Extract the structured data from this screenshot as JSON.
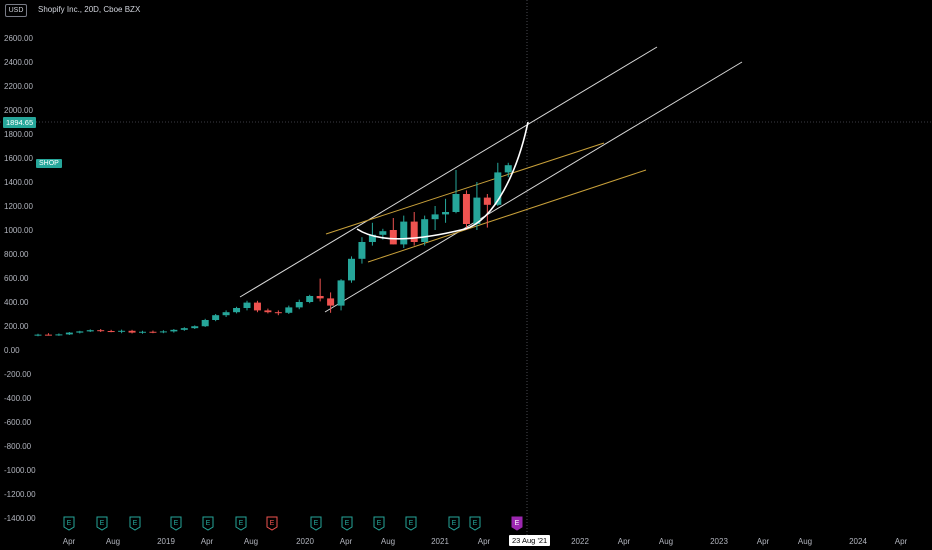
{
  "header": {
    "currency": "USD",
    "title": "Shopify Inc., 20D, Cboe BZX",
    "ticker": "SHOP",
    "crosshair_price": "1894.65",
    "crosshair_date": "23 Aug '21"
  },
  "colors": {
    "background": "#000000",
    "up": "#26a69a",
    "down": "#ef5350",
    "channel_line": "#d9d9d9",
    "wedge_line": "#c8a03a",
    "curve": "#ffffff",
    "earnings_badge_up": "#26a69a",
    "earnings_badge_down": "#ef5350",
    "earnings_badge_next": "#9c27b0"
  },
  "chart_data": {
    "type": "candlestick",
    "ylim": [
      -1450,
      2700
    ],
    "y_ticks": [
      "2600.00",
      "2400.00",
      "2200.00",
      "2000.00",
      "1800.00",
      "1600.00",
      "1400.00",
      "1200.00",
      "1000.00",
      "800.00",
      "600.00",
      "400.00",
      "200.00",
      "0.00",
      "-200.00",
      "-400.00",
      "-600.00",
      "-800.00",
      "-1000.00",
      "-1200.00",
      "-1400.00"
    ],
    "x_ticks": [
      "Apr",
      "Aug",
      "2019",
      "Apr",
      "Aug",
      "2020",
      "Apr",
      "Aug",
      "2021",
      "Apr",
      "23 Aug '21",
      "2022",
      "Apr",
      "Aug",
      "2023",
      "Apr",
      "Aug",
      "2024",
      "Apr"
    ],
    "candles": [
      {
        "o": 125,
        "h": 135,
        "l": 115,
        "c": 128
      },
      {
        "o": 128,
        "h": 140,
        "l": 120,
        "c": 126
      },
      {
        "o": 126,
        "h": 138,
        "l": 118,
        "c": 130
      },
      {
        "o": 130,
        "h": 150,
        "l": 125,
        "c": 145
      },
      {
        "o": 145,
        "h": 160,
        "l": 138,
        "c": 155
      },
      {
        "o": 155,
        "h": 172,
        "l": 150,
        "c": 165
      },
      {
        "o": 165,
        "h": 175,
        "l": 150,
        "c": 158
      },
      {
        "o": 158,
        "h": 168,
        "l": 148,
        "c": 152
      },
      {
        "o": 152,
        "h": 170,
        "l": 140,
        "c": 160
      },
      {
        "o": 160,
        "h": 168,
        "l": 138,
        "c": 145
      },
      {
        "o": 145,
        "h": 160,
        "l": 135,
        "c": 152
      },
      {
        "o": 152,
        "h": 162,
        "l": 140,
        "c": 150
      },
      {
        "o": 150,
        "h": 165,
        "l": 140,
        "c": 155
      },
      {
        "o": 155,
        "h": 175,
        "l": 145,
        "c": 168
      },
      {
        "o": 168,
        "h": 190,
        "l": 160,
        "c": 182
      },
      {
        "o": 182,
        "h": 205,
        "l": 175,
        "c": 198
      },
      {
        "o": 198,
        "h": 260,
        "l": 192,
        "c": 250
      },
      {
        "o": 250,
        "h": 300,
        "l": 240,
        "c": 290
      },
      {
        "o": 290,
        "h": 330,
        "l": 275,
        "c": 315
      },
      {
        "o": 315,
        "h": 360,
        "l": 305,
        "c": 350
      },
      {
        "o": 350,
        "h": 410,
        "l": 330,
        "c": 395
      },
      {
        "o": 395,
        "h": 410,
        "l": 315,
        "c": 330
      },
      {
        "o": 330,
        "h": 345,
        "l": 305,
        "c": 315
      },
      {
        "o": 315,
        "h": 330,
        "l": 290,
        "c": 310
      },
      {
        "o": 310,
        "h": 370,
        "l": 300,
        "c": 355
      },
      {
        "o": 355,
        "h": 420,
        "l": 340,
        "c": 400
      },
      {
        "o": 400,
        "h": 460,
        "l": 390,
        "c": 450
      },
      {
        "o": 450,
        "h": 595,
        "l": 405,
        "c": 430
      },
      {
        "o": 430,
        "h": 480,
        "l": 310,
        "c": 370
      },
      {
        "o": 370,
        "h": 590,
        "l": 330,
        "c": 580
      },
      {
        "o": 580,
        "h": 780,
        "l": 560,
        "c": 760
      },
      {
        "o": 760,
        "h": 940,
        "l": 720,
        "c": 900
      },
      {
        "o": 900,
        "h": 1060,
        "l": 870,
        "c": 960
      },
      {
        "o": 960,
        "h": 1010,
        "l": 920,
        "c": 990
      },
      {
        "o": 1000,
        "h": 1100,
        "l": 880,
        "c": 880
      },
      {
        "o": 880,
        "h": 1120,
        "l": 850,
        "c": 1070
      },
      {
        "o": 1070,
        "h": 1150,
        "l": 870,
        "c": 900
      },
      {
        "o": 900,
        "h": 1120,
        "l": 870,
        "c": 1090
      },
      {
        "o": 1090,
        "h": 1200,
        "l": 1000,
        "c": 1130
      },
      {
        "o": 1130,
        "h": 1260,
        "l": 1060,
        "c": 1150
      },
      {
        "o": 1150,
        "h": 1500,
        "l": 1140,
        "c": 1300
      },
      {
        "o": 1300,
        "h": 1330,
        "l": 1000,
        "c": 1050
      },
      {
        "o": 1050,
        "h": 1400,
        "l": 1000,
        "c": 1270
      },
      {
        "o": 1270,
        "h": 1300,
        "l": 1020,
        "c": 1210
      },
      {
        "o": 1210,
        "h": 1560,
        "l": 1200,
        "c": 1480
      },
      {
        "o": 1480,
        "h": 1560,
        "l": 1440,
        "c": 1540
      }
    ],
    "earnings_badges": [
      "E",
      "E",
      "E",
      "E",
      "E",
      "E",
      "E",
      "E",
      "E",
      "E",
      "E",
      "E",
      "E",
      "E"
    ]
  }
}
